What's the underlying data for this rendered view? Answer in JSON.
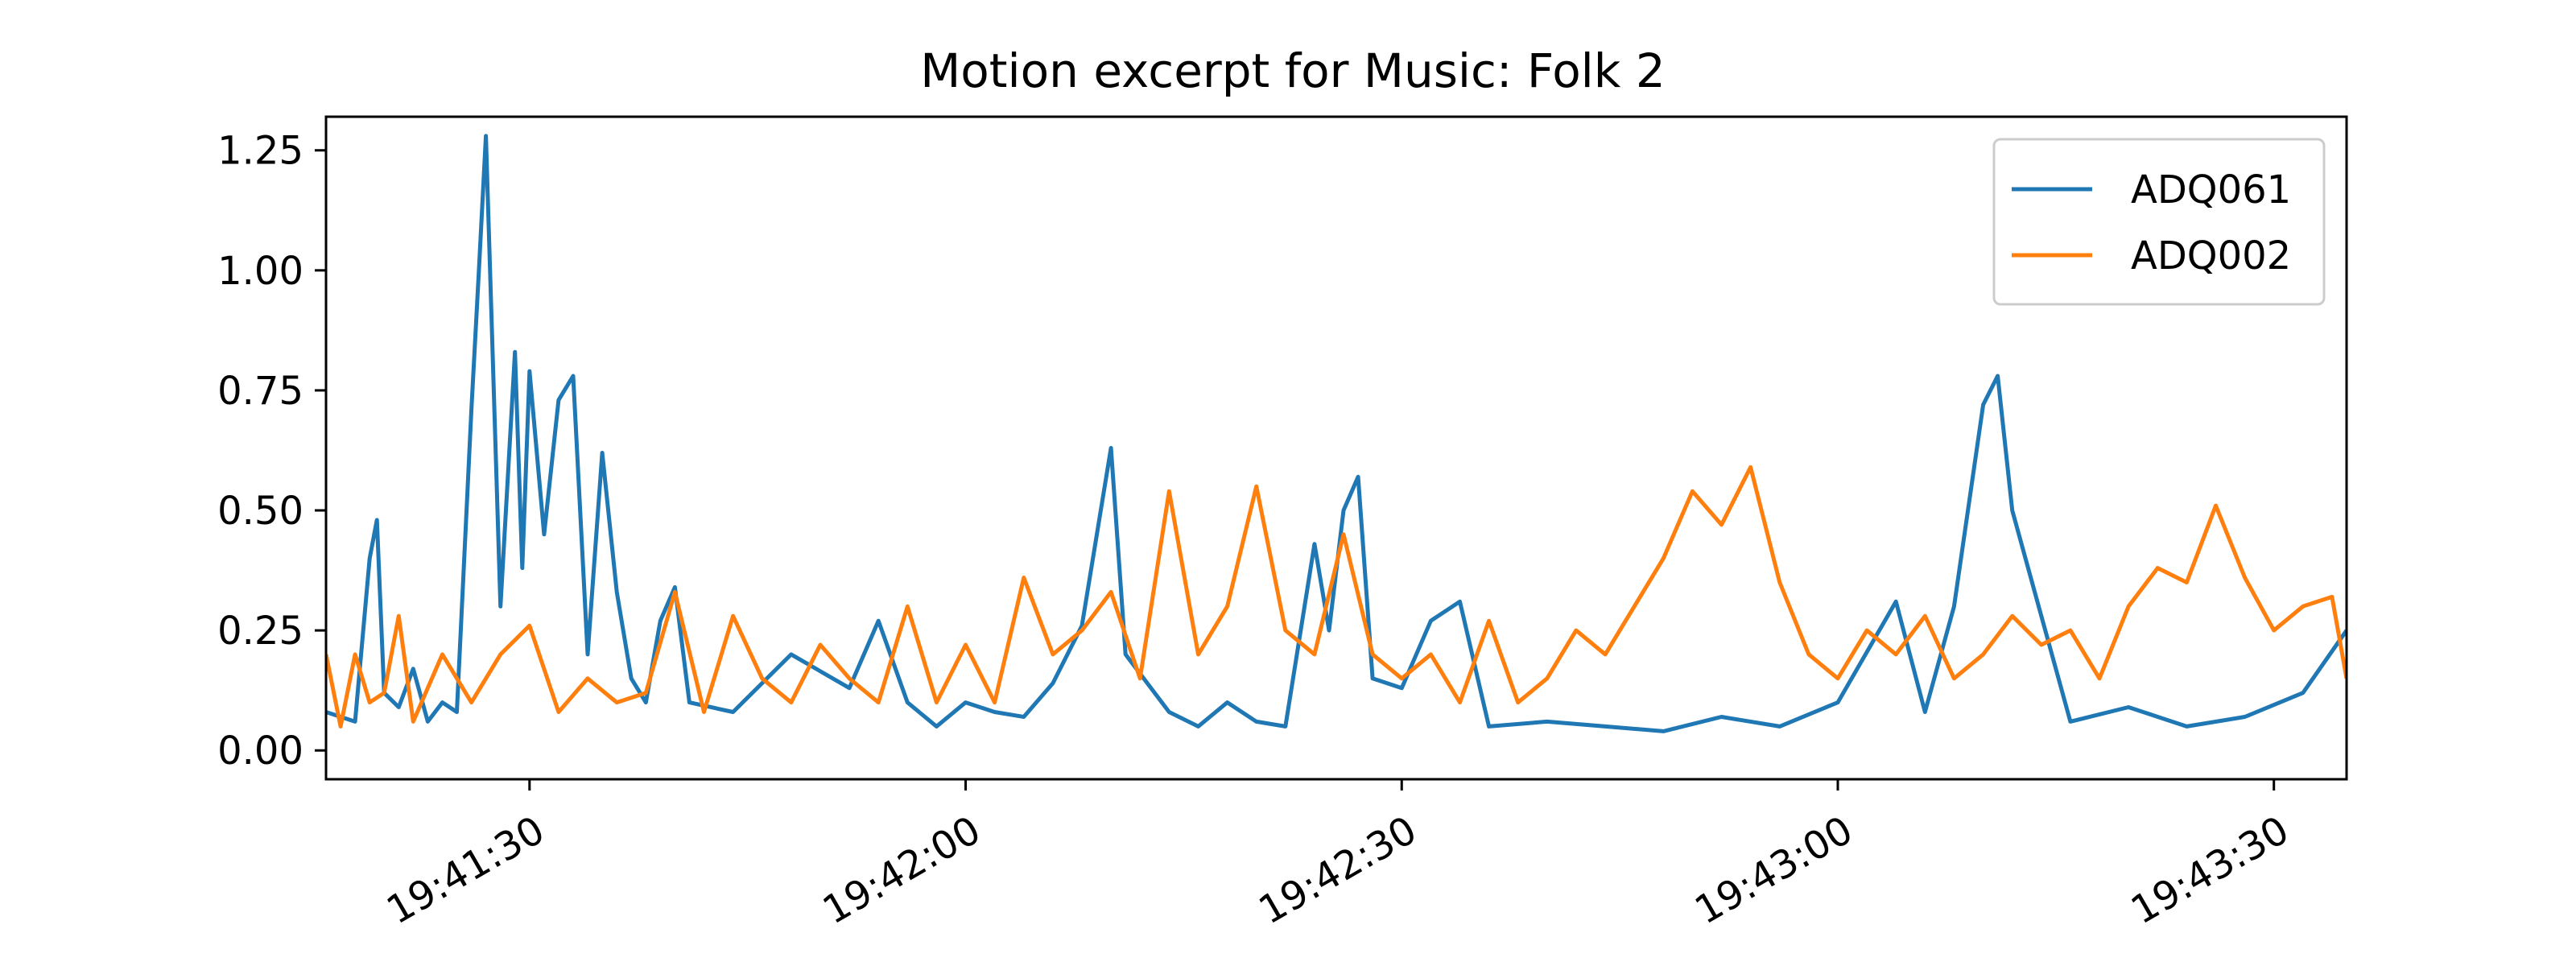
{
  "chart_data": {
    "type": "line",
    "title": "Motion excerpt for Music: Folk 2",
    "xlabel": "",
    "ylabel": "",
    "x_range": [
      "19:41:16",
      "19:43:35"
    ],
    "ylim": [
      -0.06,
      1.32
    ],
    "y_ticks": [
      0.0,
      0.25,
      0.5,
      0.75,
      1.0,
      1.25
    ],
    "y_tick_labels": [
      "0.00",
      "0.25",
      "0.50",
      "0.75",
      "1.00",
      "1.25"
    ],
    "x_ticks": [
      "19:41:30",
      "19:42:00",
      "19:42:30",
      "19:43:00",
      "19:43:30"
    ],
    "x_tick_labels": [
      "19:41:30",
      "19:42:00",
      "19:42:30",
      "19:43:00",
      "19:43:30"
    ],
    "grid": false,
    "legend_position": "top-right",
    "series": [
      {
        "name": "ADQ061",
        "color": "#1f77b4",
        "points": [
          [
            "19:41:16",
            0.08
          ],
          [
            "19:41:18",
            0.06
          ],
          [
            "19:41:19",
            0.4
          ],
          [
            "19:41:19.5",
            0.48
          ],
          [
            "19:41:20",
            0.12
          ],
          [
            "19:41:21",
            0.09
          ],
          [
            "19:41:22",
            0.17
          ],
          [
            "19:41:23",
            0.06
          ],
          [
            "19:41:24",
            0.1
          ],
          [
            "19:41:25",
            0.08
          ],
          [
            "19:41:26",
            0.71
          ],
          [
            "19:41:26.5",
            0.99
          ],
          [
            "19:41:27",
            1.28
          ],
          [
            "19:41:28",
            0.3
          ],
          [
            "19:41:29",
            0.83
          ],
          [
            "19:41:29.5",
            0.38
          ],
          [
            "19:41:30",
            0.79
          ],
          [
            "19:41:31",
            0.45
          ],
          [
            "19:41:32",
            0.73
          ],
          [
            "19:41:33",
            0.78
          ],
          [
            "19:41:34",
            0.2
          ],
          [
            "19:41:35",
            0.62
          ],
          [
            "19:41:36",
            0.33
          ],
          [
            "19:41:37",
            0.15
          ],
          [
            "19:41:38",
            0.1
          ],
          [
            "19:41:39",
            0.27
          ],
          [
            "19:41:40",
            0.34
          ],
          [
            "19:41:41",
            0.1
          ],
          [
            "19:41:44",
            0.08
          ],
          [
            "19:41:48",
            0.2
          ],
          [
            "19:41:52",
            0.13
          ],
          [
            "19:41:54",
            0.27
          ],
          [
            "19:41:56",
            0.1
          ],
          [
            "19:41:58",
            0.05
          ],
          [
            "19:42:00",
            0.1
          ],
          [
            "19:42:02",
            0.08
          ],
          [
            "19:42:04",
            0.07
          ],
          [
            "19:42:06",
            0.14
          ],
          [
            "19:42:08",
            0.26
          ],
          [
            "19:42:10",
            0.63
          ],
          [
            "19:42:11",
            0.2
          ],
          [
            "19:42:14",
            0.08
          ],
          [
            "19:42:16",
            0.05
          ],
          [
            "19:42:18",
            0.1
          ],
          [
            "19:42:20",
            0.06
          ],
          [
            "19:42:22",
            0.05
          ],
          [
            "19:42:24",
            0.43
          ],
          [
            "19:42:25",
            0.25
          ],
          [
            "19:42:26",
            0.5
          ],
          [
            "19:42:27",
            0.57
          ],
          [
            "19:42:28",
            0.15
          ],
          [
            "19:42:30",
            0.13
          ],
          [
            "19:42:32",
            0.27
          ],
          [
            "19:42:34",
            0.31
          ],
          [
            "19:42:36",
            0.05
          ],
          [
            "19:42:40",
            0.06
          ],
          [
            "19:42:44",
            0.05
          ],
          [
            "19:42:48",
            0.04
          ],
          [
            "19:42:52",
            0.07
          ],
          [
            "19:42:56",
            0.05
          ],
          [
            "19:43:00",
            0.1
          ],
          [
            "19:43:04",
            0.31
          ],
          [
            "19:43:06",
            0.08
          ],
          [
            "19:43:08",
            0.3
          ],
          [
            "19:43:10",
            0.72
          ],
          [
            "19:43:11",
            0.78
          ],
          [
            "19:43:12",
            0.5
          ],
          [
            "19:43:14",
            0.28
          ],
          [
            "19:43:16",
            0.06
          ],
          [
            "19:43:20",
            0.09
          ],
          [
            "19:43:24",
            0.05
          ],
          [
            "19:43:28",
            0.07
          ],
          [
            "19:43:32",
            0.12
          ],
          [
            "19:43:35",
            0.25
          ]
        ]
      },
      {
        "name": "ADQ002",
        "color": "#ff7f0e",
        "points": [
          [
            "19:41:16",
            0.2
          ],
          [
            "19:41:17",
            0.05
          ],
          [
            "19:41:18",
            0.2
          ],
          [
            "19:41:19",
            0.1
          ],
          [
            "19:41:20",
            0.12
          ],
          [
            "19:41:21",
            0.28
          ],
          [
            "19:41:22",
            0.06
          ],
          [
            "19:41:24",
            0.2
          ],
          [
            "19:41:26",
            0.1
          ],
          [
            "19:41:28",
            0.2
          ],
          [
            "19:41:30",
            0.26
          ],
          [
            "19:41:32",
            0.08
          ],
          [
            "19:41:34",
            0.15
          ],
          [
            "19:41:36",
            0.1
          ],
          [
            "19:41:38",
            0.12
          ],
          [
            "19:41:40",
            0.33
          ],
          [
            "19:41:42",
            0.08
          ],
          [
            "19:41:44",
            0.28
          ],
          [
            "19:41:46",
            0.15
          ],
          [
            "19:41:48",
            0.1
          ],
          [
            "19:41:50",
            0.22
          ],
          [
            "19:41:52",
            0.15
          ],
          [
            "19:41:54",
            0.1
          ],
          [
            "19:41:56",
            0.3
          ],
          [
            "19:41:58",
            0.1
          ],
          [
            "19:42:00",
            0.22
          ],
          [
            "19:42:02",
            0.1
          ],
          [
            "19:42:04",
            0.36
          ],
          [
            "19:42:06",
            0.2
          ],
          [
            "19:42:08",
            0.25
          ],
          [
            "19:42:10",
            0.33
          ],
          [
            "19:42:12",
            0.15
          ],
          [
            "19:42:14",
            0.54
          ],
          [
            "19:42:16",
            0.2
          ],
          [
            "19:42:18",
            0.3
          ],
          [
            "19:42:20",
            0.55
          ],
          [
            "19:42:22",
            0.25
          ],
          [
            "19:42:24",
            0.2
          ],
          [
            "19:42:26",
            0.45
          ],
          [
            "19:42:28",
            0.2
          ],
          [
            "19:42:30",
            0.15
          ],
          [
            "19:42:32",
            0.2
          ],
          [
            "19:42:34",
            0.1
          ],
          [
            "19:42:36",
            0.27
          ],
          [
            "19:42:38",
            0.1
          ],
          [
            "19:42:40",
            0.15
          ],
          [
            "19:42:42",
            0.25
          ],
          [
            "19:42:44",
            0.2
          ],
          [
            "19:42:46",
            0.3
          ],
          [
            "19:42:48",
            0.4
          ],
          [
            "19:42:50",
            0.54
          ],
          [
            "19:42:52",
            0.47
          ],
          [
            "19:42:54",
            0.59
          ],
          [
            "19:42:56",
            0.35
          ],
          [
            "19:42:58",
            0.2
          ],
          [
            "19:43:00",
            0.15
          ],
          [
            "19:43:02",
            0.25
          ],
          [
            "19:43:04",
            0.2
          ],
          [
            "19:43:06",
            0.28
          ],
          [
            "19:43:08",
            0.15
          ],
          [
            "19:43:10",
            0.2
          ],
          [
            "19:43:12",
            0.28
          ],
          [
            "19:43:14",
            0.22
          ],
          [
            "19:43:16",
            0.25
          ],
          [
            "19:43:18",
            0.15
          ],
          [
            "19:43:20",
            0.3
          ],
          [
            "19:43:22",
            0.38
          ],
          [
            "19:43:24",
            0.35
          ],
          [
            "19:43:26",
            0.51
          ],
          [
            "19:43:28",
            0.36
          ],
          [
            "19:43:30",
            0.25
          ],
          [
            "19:43:32",
            0.3
          ],
          [
            "19:43:34",
            0.32
          ],
          [
            "19:43:35",
            0.15
          ]
        ]
      }
    ]
  }
}
